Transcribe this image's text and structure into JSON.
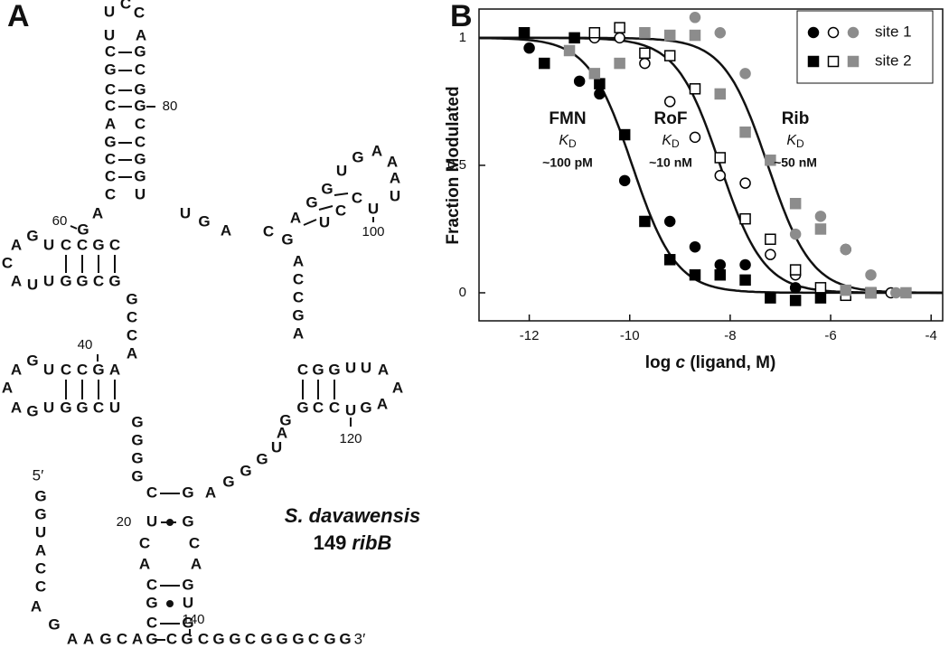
{
  "panel_a": {
    "label": "A",
    "segments": [
      [
        "U",
        "U",
        "C",
        "C",
        "A"
      ],
      [
        "C",
        "G",
        "C",
        "C",
        "A",
        "G",
        "C",
        "C",
        "C"
      ],
      [
        "G",
        "C",
        "G",
        "G",
        "C",
        "C",
        "G",
        "G",
        "U"
      ],
      [
        "A",
        "G"
      ],
      [
        "A",
        "G",
        "U",
        "C",
        "C",
        "G",
        "C"
      ],
      [
        "C"
      ],
      [
        "A",
        "U",
        "U",
        "G",
        "G",
        "C",
        "G"
      ],
      [
        "G",
        "C",
        "C",
        "A"
      ],
      [
        "A",
        "G",
        "U",
        "C",
        "C",
        "G",
        "A"
      ],
      [
        "A"
      ],
      [
        "A",
        "G",
        "U",
        "G",
        "G",
        "C",
        "U"
      ],
      [
        "G",
        "G",
        "G",
        "G"
      ],
      [
        "C",
        "U",
        "C",
        "A",
        "C",
        "G",
        "C"
      ],
      [
        "G",
        "G",
        "C",
        "A",
        "G",
        "U",
        "G"
      ],
      [
        "A",
        "G",
        "G",
        "G",
        "U",
        "A",
        "G"
      ],
      [
        "G",
        "C",
        "C",
        "U",
        "G",
        "A"
      ],
      [
        "A"
      ],
      [
        "C",
        "G",
        "G",
        "U",
        "U",
        "A"
      ],
      [
        "A",
        "C",
        "C",
        "G",
        "A"
      ],
      [
        "U",
        "G",
        "A"
      ],
      [
        "C"
      ],
      [
        "A",
        "G",
        "G",
        "U",
        "G",
        "A",
        "A"
      ],
      [
        "A",
        "U",
        "U",
        "C",
        "C",
        "U",
        "G"
      ],
      [
        "G",
        "G",
        "U",
        "A",
        "C",
        "C"
      ],
      [
        "A",
        "G"
      ],
      [
        "A",
        "A",
        "G",
        "C",
        "A",
        "G"
      ],
      [
        "C",
        "G",
        "C",
        "G",
        "G",
        "C",
        "G",
        "G",
        "G",
        "C",
        "G",
        "G"
      ]
    ],
    "position_labels": [
      "80",
      "60",
      "100",
      "40",
      "120",
      "20",
      "140"
    ],
    "five_prime": "5′",
    "three_prime": "3′",
    "species": "S. davawensis",
    "construct_number": "149",
    "construct_name": "ribB"
  },
  "chart_data": {
    "type": "scatter",
    "panel_label": "B",
    "x_label_parts": [
      "log ",
      "c",
      " (ligand, M)"
    ],
    "y_label": "Fraction Modulated",
    "xlim": [
      -13,
      -3.77
    ],
    "ylim": [
      -0.11,
      1.113
    ],
    "xticks": [
      -12,
      -10,
      -8,
      -6,
      -4
    ],
    "yticks": [
      0,
      0.5,
      1
    ],
    "legend": "upper right",
    "series": [
      {
        "name": "site 1",
        "marker": "circle",
        "groups": [
          {
            "color": "#000000",
            "filled": true,
            "x": [
              -12,
              -11,
              -10.6,
              -10.1,
              -9.2,
              -8.7,
              -8.2,
              -7.7,
              -6.7
            ],
            "values": [
              0.96,
              0.83,
              0.78,
              0.44,
              0.28,
              0.18,
              0.11,
              0.11,
              0.02
            ]
          },
          {
            "color": "#000000",
            "filled": false,
            "x": [
              -10.7,
              -10.2,
              -9.7,
              -9.2,
              -8.7,
              -8.2,
              -7.7,
              -7.2,
              -6.7,
              -5.7,
              -4.8
            ],
            "values": [
              1.0,
              1.0,
              0.9,
              0.75,
              0.61,
              0.46,
              0.43,
              0.15,
              0.07,
              0.17,
              0.0
            ]
          },
          {
            "color": "#8c8c8c",
            "filled": true,
            "x": [
              -8.7,
              -8.2,
              -7.7,
              -7.2,
              -6.7,
              -6.2,
              -5.7,
              -5.2,
              -4.7
            ],
            "values": [
              1.08,
              1.02,
              0.86,
              0.52,
              0.23,
              0.3,
              0.17,
              0.07,
              0.0
            ]
          }
        ]
      },
      {
        "name": "site 2",
        "marker": "square",
        "groups": [
          {
            "color": "#000000",
            "filled": true,
            "x": [
              -12.1,
              -11.7,
              -11.1,
              -10.6,
              -10.1,
              -9.7,
              -9.2,
              -8.7,
              -8.2,
              -7.7,
              -7.2,
              -6.7,
              -6.2
            ],
            "values": [
              1.02,
              0.9,
              1.0,
              0.82,
              0.62,
              0.28,
              0.13,
              0.07,
              0.07,
              0.05,
              -0.02,
              -0.03,
              -0.02
            ]
          },
          {
            "color": "#000000",
            "filled": false,
            "x": [
              -10.7,
              -10.2,
              -9.7,
              -9.2,
              -8.7,
              -8.2,
              -7.7,
              -7.2,
              -6.7,
              -6.2,
              -5.7,
              -5.2
            ],
            "values": [
              1.02,
              1.04,
              0.94,
              0.93,
              0.8,
              0.53,
              0.29,
              0.21,
              0.09,
              0.02,
              -0.01,
              0.0
            ]
          },
          {
            "color": "#8c8c8c",
            "filled": true,
            "x": [
              -11.2,
              -10.7,
              -10.2,
              -9.7,
              -9.2,
              -8.7,
              -8.2,
              -7.7,
              -7.2,
              -6.7,
              -6.2,
              -5.7,
              -5.2,
              -4.5
            ],
            "values": [
              0.95,
              0.86,
              0.9,
              1.02,
              1.01,
              1.01,
              0.78,
              0.63,
              0.52,
              0.35,
              0.25,
              0.01,
              0.0,
              0.0
            ]
          }
        ]
      }
    ],
    "fits": [
      {
        "midpoint": -9.95
      },
      {
        "midpoint": -8.2
      },
      {
        "midpoint": -7.25
      }
    ],
    "annotations": [
      {
        "ligand": "FMN",
        "kd": "~100 pM"
      },
      {
        "ligand": "RoF",
        "kd": "~10 nM"
      },
      {
        "ligand": "Rib",
        "kd": "~50 nM"
      }
    ],
    "kd_symbol": "K",
    "kd_subscript": "D"
  }
}
